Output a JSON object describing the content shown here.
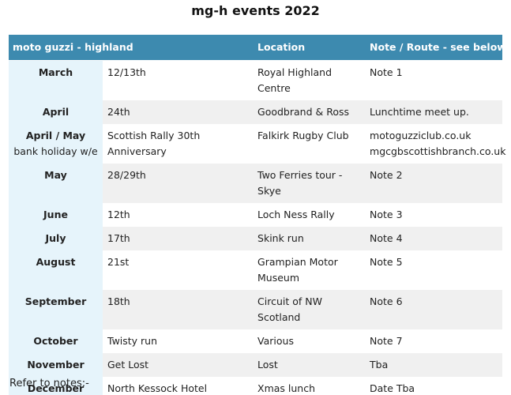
{
  "title": "mg-h events 2022",
  "header": {
    "col1": "moto guzzi - highland",
    "col2": "",
    "col3": "Location",
    "col4": "Note / Route - see below."
  },
  "rows": [
    {
      "month": "March",
      "sub": "",
      "date": "12/13th",
      "location": "Royal Highland Centre",
      "note": "Note 1",
      "note2": ""
    },
    {
      "month": "April",
      "sub": "",
      "date": "24th",
      "location": "Goodbrand & Ross",
      "note": "Lunchtime meet up.",
      "note2": ""
    },
    {
      "month": "April / May",
      "sub": "bank holiday w/e",
      "date": "Scottish Rally 30th Anniversary",
      "location": "Falkirk Rugby Club",
      "note": "motoguzziclub.co.uk",
      "note2": "mgcgbscottishbranch.co.uk"
    },
    {
      "month": "May",
      "sub": "",
      "date": "28/29th",
      "location": "Two Ferries tour - Skye",
      "note": "Note 2",
      "note2": ""
    },
    {
      "month": "June",
      "sub": "",
      "date": "12th",
      "location": "Loch Ness Rally",
      "note": "Note 3",
      "note2": ""
    },
    {
      "month": "July",
      "sub": "",
      "date": "17th",
      "location": "Skink run",
      "note": "Note 4",
      "note2": ""
    },
    {
      "month": "August",
      "sub": "",
      "date": "21st",
      "location": "Grampian Motor Museum",
      "note": "Note 5",
      "note2": ""
    },
    {
      "month": "September",
      "sub": "",
      "date": "18th",
      "location": "Circuit of NW Scotland",
      "note": "Note 6",
      "note2": ""
    },
    {
      "month": "October",
      "sub": "",
      "date": "Twisty run",
      "location": "Various",
      "note": "Note 7",
      "note2": ""
    },
    {
      "month": "November",
      "sub": "",
      "date": "Get Lost",
      "location": "Lost",
      "note": "Tba",
      "note2": ""
    },
    {
      "month": "December",
      "sub": "",
      "date": "North Kessock Hotel",
      "location": "Xmas lunch",
      "note": "Date Tba",
      "note2": ""
    }
  ],
  "footer": {
    "refer": "Refer to notes:-"
  },
  "colors": {
    "header_bg": "#3d8aaf",
    "month_bg": "#e6f4fb",
    "stripe_bg": "#f0f0f0"
  }
}
